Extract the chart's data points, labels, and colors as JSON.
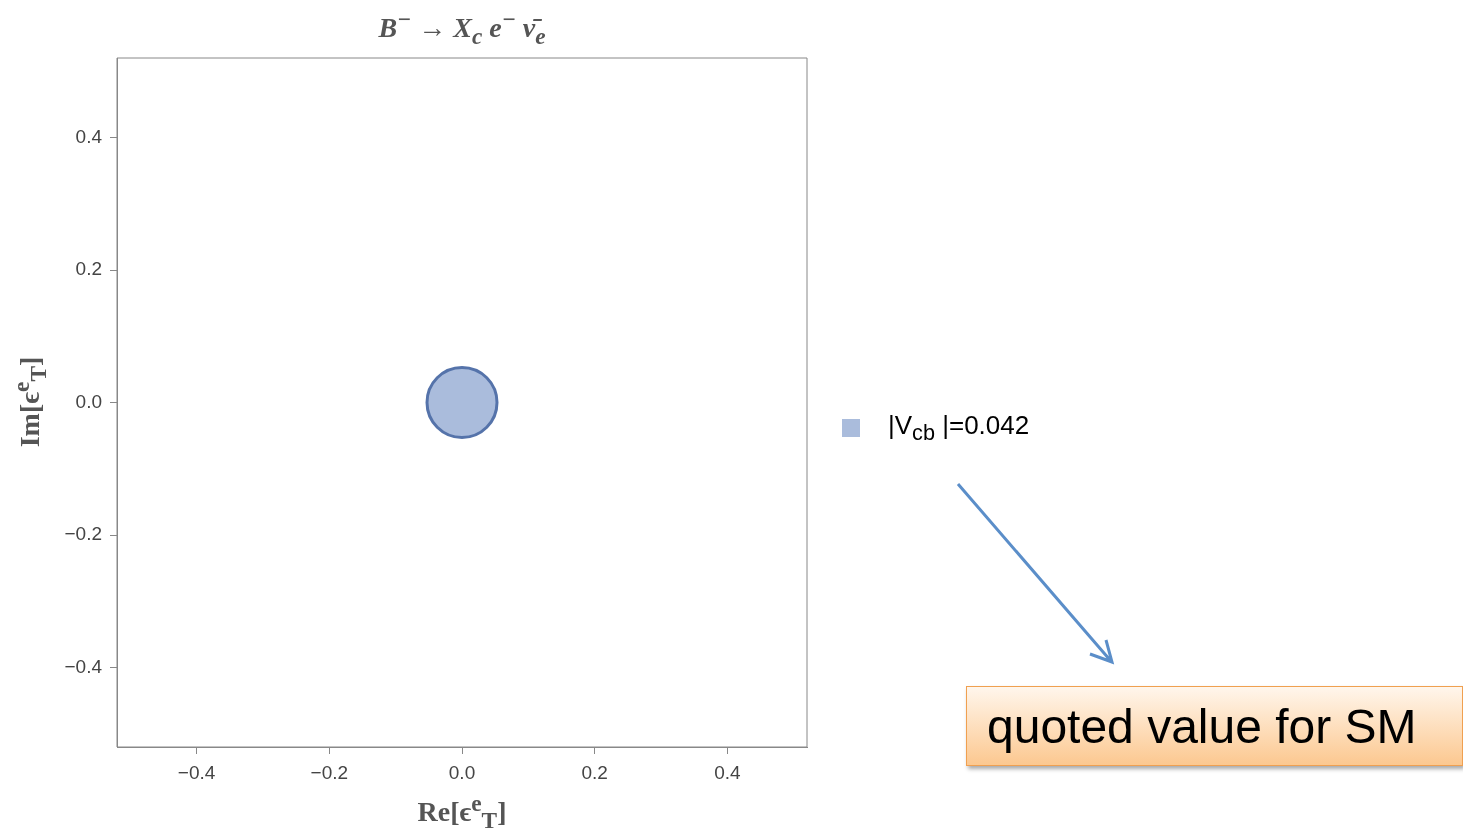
{
  "chart_data": {
    "type": "bubble",
    "title": "B$^{−}$ → X$_{c}$ e$^{−}$ ν̄$_{e}$",
    "xlabel": "Re[ϵ$^{e}$$_{T}$]",
    "ylabel": "Im[ϵ$^{e}$$_{T}$]",
    "series": [
      {
        "name": "|V$_{cb}$ |=0.042",
        "color": "#aabcdc",
        "x": [
          0
        ],
        "values": [
          0
        ],
        "sizes": [
          1
        ]
      }
    ],
    "xlim": [
      -0.52,
      0.52
    ],
    "ylim": [
      -0.52,
      0.52
    ],
    "xticks": [
      {
        "value": -0.4,
        "label": "−0.4"
      },
      {
        "value": -0.2,
        "label": "−0.2"
      },
      {
        "value": 0,
        "label": "0.0"
      },
      {
        "value": 0.2,
        "label": "0.2"
      },
      {
        "value": 0.4,
        "label": "0.4"
      }
    ],
    "yticks": [
      {
        "value": -0.4,
        "label": "−0.4"
      },
      {
        "value": -0.2,
        "label": "−0.2"
      },
      {
        "value": 0,
        "label": "0.0"
      },
      {
        "value": 0.2,
        "label": "0.2"
      },
      {
        "value": 0.4,
        "label": "0.4"
      }
    ],
    "grid": false,
    "legend": "right",
    "annotations": [
      "quoted value for SM"
    ]
  }
}
